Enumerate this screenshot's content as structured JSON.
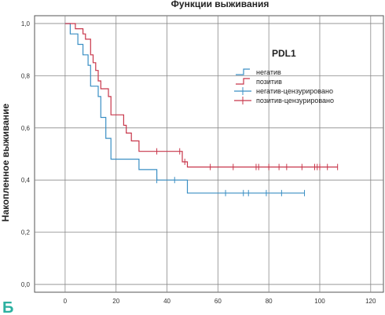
{
  "chart_data": {
    "type": "line",
    "title": "Функции выживания",
    "xlabel": "",
    "ylabel": "Накопленное выживание",
    "xlim": [
      -12,
      125
    ],
    "ylim": [
      -0.03,
      1.03
    ],
    "xticks": [
      "0",
      "20",
      "40",
      "60",
      "80",
      "100",
      "120"
    ],
    "yticks": [
      "0,0",
      "0,2",
      "0,4",
      "0,6",
      "0,8",
      "1,0"
    ],
    "grid": true,
    "step": true,
    "legend": {
      "title": "PDL1",
      "placement": "top-right",
      "entries": [
        "негатив",
        "позитив",
        "негатив-цензурировано",
        "позитив-цензурировано"
      ]
    },
    "panel_letter": "Б",
    "series": [
      {
        "name": "негатив",
        "color": "#3a8fc4",
        "points": [
          [
            0,
            1.0
          ],
          [
            2,
            1.0
          ],
          [
            2,
            0.96
          ],
          [
            5,
            0.96
          ],
          [
            5,
            0.92
          ],
          [
            7,
            0.92
          ],
          [
            7,
            0.88
          ],
          [
            9,
            0.88
          ],
          [
            9,
            0.84
          ],
          [
            10,
            0.84
          ],
          [
            10,
            0.76
          ],
          [
            13,
            0.76
          ],
          [
            13,
            0.72
          ],
          [
            14,
            0.72
          ],
          [
            14,
            0.64
          ],
          [
            16,
            0.64
          ],
          [
            16,
            0.56
          ],
          [
            18,
            0.56
          ],
          [
            18,
            0.48
          ],
          [
            29,
            0.48
          ],
          [
            29,
            0.44
          ],
          [
            36,
            0.44
          ],
          [
            36,
            0.4
          ],
          [
            48,
            0.4
          ],
          [
            48,
            0.35
          ],
          [
            94,
            0.35
          ]
        ],
        "censored": [
          [
            36,
            0.4
          ],
          [
            43,
            0.4
          ],
          [
            63,
            0.35
          ],
          [
            70,
            0.35
          ],
          [
            72,
            0.35
          ],
          [
            79,
            0.35
          ],
          [
            85,
            0.35
          ],
          [
            94,
            0.35
          ]
        ]
      },
      {
        "name": "позитив",
        "color": "#c8364a",
        "points": [
          [
            0,
            1.0
          ],
          [
            4,
            1.0
          ],
          [
            4,
            0.98
          ],
          [
            7,
            0.98
          ],
          [
            7,
            0.96
          ],
          [
            8,
            0.96
          ],
          [
            8,
            0.94
          ],
          [
            10,
            0.94
          ],
          [
            10,
            0.88
          ],
          [
            11,
            0.88
          ],
          [
            11,
            0.85
          ],
          [
            12,
            0.85
          ],
          [
            12,
            0.82
          ],
          [
            13,
            0.82
          ],
          [
            13,
            0.78
          ],
          [
            14,
            0.78
          ],
          [
            14,
            0.75
          ],
          [
            17,
            0.75
          ],
          [
            17,
            0.72
          ],
          [
            18,
            0.72
          ],
          [
            18,
            0.65
          ],
          [
            23,
            0.65
          ],
          [
            23,
            0.61
          ],
          [
            24,
            0.61
          ],
          [
            24,
            0.58
          ],
          [
            26,
            0.58
          ],
          [
            26,
            0.55
          ],
          [
            29,
            0.55
          ],
          [
            29,
            0.51
          ],
          [
            46,
            0.51
          ],
          [
            46,
            0.47
          ],
          [
            48,
            0.47
          ],
          [
            48,
            0.45
          ],
          [
            107,
            0.45
          ]
        ],
        "censored": [
          [
            36,
            0.51
          ],
          [
            45,
            0.51
          ],
          [
            47,
            0.47
          ],
          [
            57,
            0.45
          ],
          [
            66,
            0.45
          ],
          [
            75,
            0.45
          ],
          [
            76,
            0.45
          ],
          [
            80,
            0.45
          ],
          [
            84,
            0.45
          ],
          [
            87,
            0.45
          ],
          [
            93,
            0.45
          ],
          [
            98,
            0.45
          ],
          [
            99,
            0.45
          ],
          [
            100,
            0.45
          ],
          [
            103,
            0.45
          ],
          [
            107,
            0.45
          ]
        ]
      }
    ]
  }
}
